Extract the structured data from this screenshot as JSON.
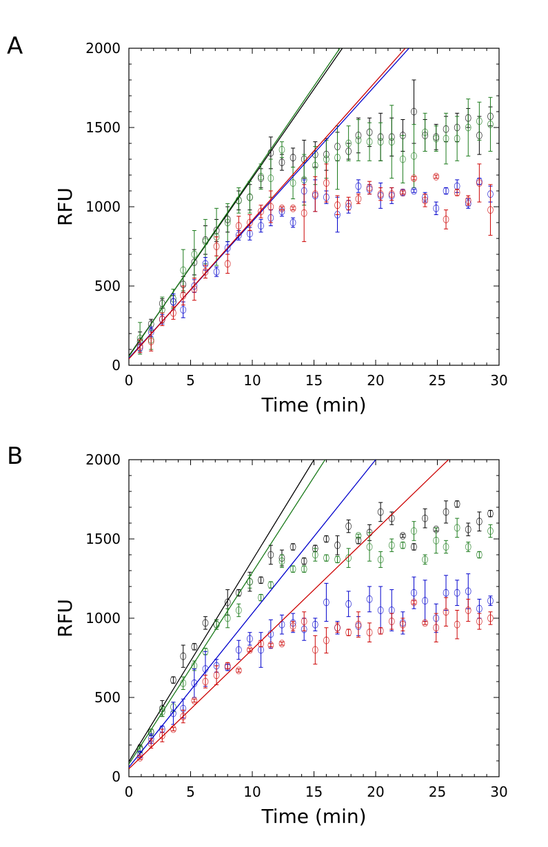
{
  "chart_data": [
    {
      "type": "scatter",
      "panel_label": "A",
      "xlabel": "Time (min)",
      "ylabel": "RFU",
      "xlim": [
        0,
        30
      ],
      "ylim": [
        0,
        2000
      ],
      "xticks": [
        "0",
        "5",
        "10",
        "15",
        "20",
        "25",
        "30"
      ],
      "yticks": [
        "0",
        "500",
        "1000",
        "1500",
        "2000"
      ],
      "x": [
        0.9,
        1.8,
        2.7,
        3.6,
        4.4,
        5.3,
        6.2,
        7.1,
        8.0,
        8.9,
        9.8,
        10.7,
        11.5,
        12.4,
        13.3,
        14.2,
        15.1,
        16.0,
        16.9,
        17.8,
        18.6,
        19.5,
        20.4,
        21.3,
        22.2,
        23.1,
        24.0,
        24.9,
        25.7,
        26.6,
        27.5,
        28.4,
        29.3
      ],
      "series": [
        {
          "name": "black",
          "color": "#000000",
          "values": [
            150,
            260,
            390,
            400,
            510,
            650,
            790,
            850,
            920,
            1040,
            1060,
            1180,
            1340,
            1280,
            1310,
            1300,
            1330,
            1330,
            1380,
            1350,
            1450,
            1470,
            1440,
            1440,
            1450,
            1600,
            1450,
            1440,
            1490,
            1500,
            1560,
            1450,
            1570
          ],
          "errors": [
            60,
            30,
            30,
            40,
            50,
            80,
            90,
            70,
            80,
            60,
            80,
            60,
            100,
            50,
            60,
            120,
            80,
            100,
            90,
            50,
            110,
            90,
            150,
            120,
            100,
            200,
            100,
            80,
            80,
            90,
            60,
            120,
            60
          ],
          "fit": {
            "x0": 0,
            "y0": 60,
            "x1": 17.3,
            "y1": 2000
          }
        },
        {
          "name": "green",
          "color": "#1a7a1a",
          "values": [
            170,
            160,
            350,
            420,
            600,
            700,
            780,
            810,
            900,
            1040,
            1060,
            1190,
            1180,
            1360,
            1150,
            1170,
            1260,
            1300,
            1310,
            1400,
            1420,
            1410,
            1410,
            1410,
            1300,
            1320,
            1470,
            1430,
            1430,
            1430,
            1500,
            1540,
            1520
          ],
          "errors": [
            100,
            60,
            80,
            60,
            130,
            150,
            140,
            180,
            120,
            80,
            100,
            80,
            120,
            50,
            100,
            160,
            120,
            120,
            200,
            110,
            130,
            120,
            120,
            230,
            150,
            200,
            120,
            80,
            160,
            140,
            180,
            120,
            170
          ],
          "fit": {
            "x0": 0,
            "y0": 55,
            "x1": 17.1,
            "y1": 2000
          }
        },
        {
          "name": "blue",
          "color": "#0000cc",
          "values": [
            110,
            210,
            290,
            400,
            350,
            500,
            640,
            590,
            740,
            820,
            830,
            880,
            930,
            970,
            900,
            1100,
            1070,
            1060,
            950,
            1000,
            1130,
            1110,
            1070,
            1070,
            1090,
            1100,
            1060,
            990,
            1100,
            1130,
            1020,
            1160,
            1080
          ],
          "errors": [
            30,
            30,
            30,
            50,
            50,
            40,
            40,
            30,
            40,
            30,
            40,
            40,
            50,
            30,
            30,
            70,
            100,
            40,
            110,
            40,
            40,
            30,
            80,
            50,
            20,
            10,
            30,
            40,
            20,
            40,
            30,
            20,
            50
          ],
          "fit": {
            "x0": 0,
            "y0": 45,
            "x1": 22.7,
            "y1": 2000
          }
        },
        {
          "name": "red",
          "color": "#cc0000",
          "values": [
            120,
            150,
            290,
            330,
            440,
            480,
            590,
            750,
            640,
            880,
            900,
            970,
            1000,
            990,
            990,
            960,
            1080,
            1150,
            1010,
            1020,
            1050,
            1120,
            1080,
            1080,
            1090,
            1180,
            1040,
            1190,
            920,
            1090,
            1040,
            1150,
            980
          ],
          "errors": [
            40,
            60,
            40,
            40,
            60,
            70,
            40,
            60,
            60,
            60,
            50,
            40,
            100,
            10,
            10,
            180,
            110,
            120,
            60,
            40,
            30,
            40,
            40,
            40,
            10,
            10,
            40,
            10,
            60,
            20,
            30,
            120,
            160
          ],
          "fit": {
            "x0": 0,
            "y0": 40,
            "x1": 22.4,
            "y1": 2000
          }
        }
      ]
    },
    {
      "type": "scatter",
      "panel_label": "B",
      "xlabel": "Time (min)",
      "ylabel": "RFU",
      "xlim": [
        0,
        30
      ],
      "ylim": [
        0,
        2000
      ],
      "xticks": [
        "0",
        "5",
        "10",
        "15",
        "20",
        "25",
        "30"
      ],
      "yticks": [
        "0",
        "500",
        "1000",
        "1500",
        "2000"
      ],
      "x": [
        0.9,
        1.8,
        2.7,
        3.6,
        4.4,
        5.3,
        6.2,
        7.1,
        8.0,
        8.9,
        9.8,
        10.7,
        11.5,
        12.4,
        13.3,
        14.2,
        15.1,
        16.0,
        16.9,
        17.8,
        18.6,
        19.5,
        20.4,
        21.3,
        22.2,
        23.1,
        24.0,
        24.9,
        25.7,
        26.6,
        27.5,
        28.4,
        29.3
      ],
      "series": [
        {
          "name": "black",
          "color": "#000000",
          "values": [
            180,
            280,
            430,
            610,
            760,
            820,
            970,
            960,
            1100,
            1160,
            1230,
            1240,
            1400,
            1380,
            1450,
            1360,
            1440,
            1500,
            1460,
            1580,
            1490,
            1540,
            1670,
            1630,
            1520,
            1450,
            1630,
            1560,
            1670,
            1720,
            1560,
            1610,
            1660
          ],
          "errors": [
            20,
            20,
            50,
            20,
            70,
            20,
            40,
            30,
            80,
            20,
            60,
            20,
            60,
            50,
            20,
            20,
            20,
            20,
            60,
            40,
            20,
            50,
            60,
            40,
            10,
            20,
            60,
            10,
            70,
            20,
            40,
            60,
            20
          ],
          "fit": {
            "x0": 0,
            "y0": 95,
            "x1": 15.0,
            "y1": 2000
          }
        },
        {
          "name": "green",
          "color": "#1a7a1a",
          "values": [
            170,
            280,
            410,
            440,
            590,
            700,
            790,
            960,
            1000,
            1050,
            1230,
            1130,
            1210,
            1360,
            1310,
            1310,
            1400,
            1380,
            1370,
            1380,
            1520,
            1450,
            1370,
            1460,
            1460,
            1550,
            1370,
            1490,
            1450,
            1570,
            1450,
            1400,
            1550
          ],
          "errors": [
            20,
            20,
            30,
            30,
            40,
            30,
            20,
            30,
            60,
            40,
            40,
            20,
            20,
            40,
            20,
            20,
            40,
            20,
            20,
            60,
            10,
            90,
            50,
            40,
            20,
            60,
            30,
            80,
            40,
            60,
            30,
            20,
            40
          ],
          "fit": {
            "x0": 0,
            "y0": 80,
            "x1": 15.9,
            "y1": 2000
          }
        },
        {
          "name": "blue",
          "color": "#0000cc",
          "values": [
            140,
            240,
            300,
            400,
            430,
            590,
            680,
            700,
            690,
            800,
            870,
            800,
            900,
            960,
            970,
            930,
            960,
            1100,
            940,
            1090,
            950,
            1120,
            1050,
            1050,
            970,
            1160,
            1110,
            1000,
            1160,
            1160,
            1170,
            1060,
            1110
          ],
          "errors": [
            20,
            30,
            20,
            70,
            60,
            90,
            110,
            40,
            20,
            60,
            40,
            110,
            90,
            60,
            60,
            70,
            40,
            120,
            40,
            80,
            60,
            80,
            150,
            130,
            70,
            100,
            130,
            90,
            110,
            80,
            110,
            60,
            30
          ],
          "fit": {
            "x0": 0,
            "y0": 60,
            "x1": 20.0,
            "y1": 2000
          }
        },
        {
          "name": "red",
          "color": "#cc0000",
          "values": [
            120,
            210,
            260,
            300,
            380,
            480,
            600,
            640,
            700,
            670,
            800,
            840,
            830,
            840,
            950,
            980,
            800,
            860,
            940,
            910,
            960,
            910,
            920,
            980,
            960,
            1100,
            970,
            940,
            1040,
            960,
            1050,
            980,
            1000
          ],
          "errors": [
            10,
            30,
            40,
            10,
            40,
            10,
            40,
            60,
            20,
            10,
            10,
            20,
            10,
            10,
            30,
            60,
            90,
            80,
            30,
            20,
            80,
            60,
            20,
            50,
            40,
            10,
            10,
            90,
            90,
            90,
            70,
            50,
            40
          ],
          "fit": {
            "x0": 0,
            "y0": 50,
            "x1": 25.9,
            "y1": 2000
          }
        }
      ]
    }
  ]
}
